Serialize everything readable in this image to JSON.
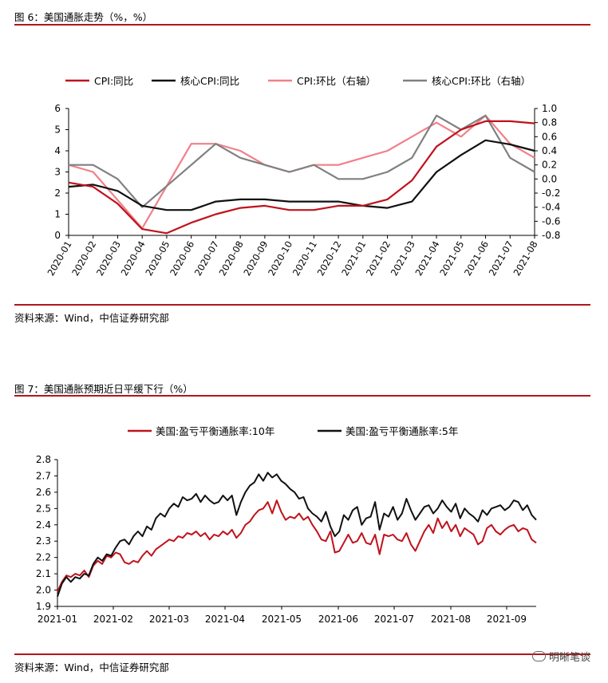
{
  "figure6": {
    "title": "图 6：美国通胀走势（%，%）",
    "source": "资料来源：Wind，中信证券研究部"
  },
  "figure7": {
    "title": "图 7：美国通胀预期近日平缓下行（%）",
    "source": "资料来源：Wind，中信证券研究部"
  },
  "watermark": "明晰笔谈",
  "colors": {
    "red": "#c0121c",
    "black": "#111111",
    "pink": "#f0808a",
    "gray": "#808080",
    "rule": "#b0161e"
  },
  "chart_data": [
    {
      "type": "line",
      "categories": [
        "2020-01",
        "2020-02",
        "2020-03",
        "2020-04",
        "2020-05",
        "2020-06",
        "2020-07",
        "2020-08",
        "2020-09",
        "2020-10",
        "2020-11",
        "2020-12",
        "2021-01",
        "2021-02",
        "2021-03",
        "2021-04",
        "2021-05",
        "2021-06",
        "2021-07",
        "2021-08"
      ],
      "y_left_ticks": [
        "6",
        "5",
        "4",
        "3",
        "2",
        "1",
        "0"
      ],
      "y_right_ticks": [
        "1.0",
        "0.8",
        "0.6",
        "0.4",
        "0.2",
        "0.0",
        "-0.2",
        "-0.4",
        "-0.6",
        "-0.8"
      ],
      "ylim_left": [
        0,
        6
      ],
      "ylim_right": [
        -0.8,
        1.0
      ],
      "legend_position": "top",
      "series": [
        {
          "name": "CPI:同比",
          "axis": "left",
          "color": "#c0121c",
          "values": [
            2.5,
            2.3,
            1.5,
            0.3,
            0.1,
            0.6,
            1.0,
            1.3,
            1.4,
            1.2,
            1.2,
            1.4,
            1.4,
            1.7,
            2.6,
            4.2,
            5.0,
            5.4,
            5.4,
            5.3
          ]
        },
        {
          "name": "核心CPI:同比",
          "axis": "left",
          "color": "#111111",
          "values": [
            2.3,
            2.4,
            2.1,
            1.4,
            1.2,
            1.2,
            1.6,
            1.7,
            1.7,
            1.6,
            1.6,
            1.6,
            1.4,
            1.3,
            1.6,
            3.0,
            3.8,
            4.5,
            4.3,
            4.0
          ]
        },
        {
          "name": "CPI:环比（右轴）",
          "axis": "right",
          "color": "#f0808a",
          "values": [
            0.2,
            0.1,
            -0.3,
            -0.7,
            -0.1,
            0.5,
            0.5,
            0.4,
            0.2,
            0.1,
            0.2,
            0.2,
            0.3,
            0.4,
            0.6,
            0.8,
            0.6,
            0.9,
            0.5,
            0.3
          ]
        },
        {
          "name": "核心CPI:环比（右轴）",
          "axis": "right",
          "color": "#808080",
          "values": [
            0.2,
            0.2,
            0.0,
            -0.4,
            -0.1,
            0.2,
            0.5,
            0.3,
            0.2,
            0.1,
            0.2,
            0.0,
            0.0,
            0.1,
            0.3,
            0.9,
            0.7,
            0.9,
            0.3,
            0.1
          ]
        }
      ]
    },
    {
      "type": "line",
      "x_tick_labels": [
        "2021-01",
        "2021-02",
        "2021-03",
        "2021-04",
        "2021-05",
        "2021-06",
        "2021-07",
        "2021-08",
        "2021-09"
      ],
      "y_ticks": [
        "2.8",
        "2.7",
        "2.6",
        "2.5",
        "2.4",
        "2.3",
        "2.2",
        "2.1",
        "2.0",
        "1.9"
      ],
      "ylim": [
        1.9,
        2.8
      ],
      "legend_position": "top",
      "series": [
        {
          "name": "美国:盈亏平衡通胀率:10年",
          "color": "#c0121c",
          "values": [
            1.99,
            2.05,
            2.09,
            2.08,
            2.1,
            2.09,
            2.12,
            2.08,
            2.15,
            2.18,
            2.16,
            2.21,
            2.2,
            2.23,
            2.22,
            2.17,
            2.16,
            2.18,
            2.17,
            2.21,
            2.24,
            2.21,
            2.25,
            2.27,
            2.29,
            2.31,
            2.3,
            2.33,
            2.32,
            2.35,
            2.34,
            2.36,
            2.33,
            2.35,
            2.31,
            2.34,
            2.33,
            2.36,
            2.34,
            2.37,
            2.32,
            2.35,
            2.4,
            2.42,
            2.46,
            2.49,
            2.5,
            2.54,
            2.47,
            2.55,
            2.48,
            2.43,
            2.45,
            2.44,
            2.47,
            2.43,
            2.45,
            2.4,
            2.36,
            2.31,
            2.3,
            2.36,
            2.23,
            2.24,
            2.29,
            2.34,
            2.29,
            2.3,
            2.35,
            2.29,
            2.28,
            2.34,
            2.22,
            2.34,
            2.33,
            2.34,
            2.31,
            2.3,
            2.35,
            2.28,
            2.24,
            2.3,
            2.36,
            2.4,
            2.35,
            2.44,
            2.38,
            2.42,
            2.36,
            2.4,
            2.33,
            2.38,
            2.36,
            2.34,
            2.28,
            2.3,
            2.38,
            2.4,
            2.36,
            2.34,
            2.37,
            2.39,
            2.4,
            2.36,
            2.38,
            2.37,
            2.31,
            2.29
          ]
        },
        {
          "name": "美国:盈亏平衡通胀率:5年",
          "color": "#111111",
          "values": [
            1.96,
            2.04,
            2.08,
            2.05,
            2.08,
            2.07,
            2.1,
            2.09,
            2.16,
            2.2,
            2.18,
            2.22,
            2.21,
            2.26,
            2.3,
            2.31,
            2.28,
            2.33,
            2.36,
            2.33,
            2.39,
            2.37,
            2.44,
            2.47,
            2.45,
            2.5,
            2.53,
            2.51,
            2.57,
            2.55,
            2.56,
            2.59,
            2.54,
            2.58,
            2.55,
            2.53,
            2.54,
            2.58,
            2.55,
            2.58,
            2.46,
            2.54,
            2.6,
            2.64,
            2.66,
            2.71,
            2.67,
            2.72,
            2.69,
            2.71,
            2.67,
            2.65,
            2.62,
            2.6,
            2.56,
            2.57,
            2.5,
            2.47,
            2.45,
            2.42,
            2.48,
            2.39,
            2.33,
            2.36,
            2.46,
            2.43,
            2.49,
            2.51,
            2.4,
            2.44,
            2.45,
            2.54,
            2.37,
            2.47,
            2.45,
            2.51,
            2.43,
            2.47,
            2.56,
            2.49,
            2.43,
            2.47,
            2.51,
            2.52,
            2.47,
            2.5,
            2.55,
            2.51,
            2.48,
            2.53,
            2.44,
            2.5,
            2.47,
            2.45,
            2.42,
            2.49,
            2.46,
            2.5,
            2.51,
            2.52,
            2.49,
            2.51,
            2.55,
            2.54,
            2.49,
            2.52,
            2.46,
            2.43
          ]
        }
      ]
    }
  ]
}
